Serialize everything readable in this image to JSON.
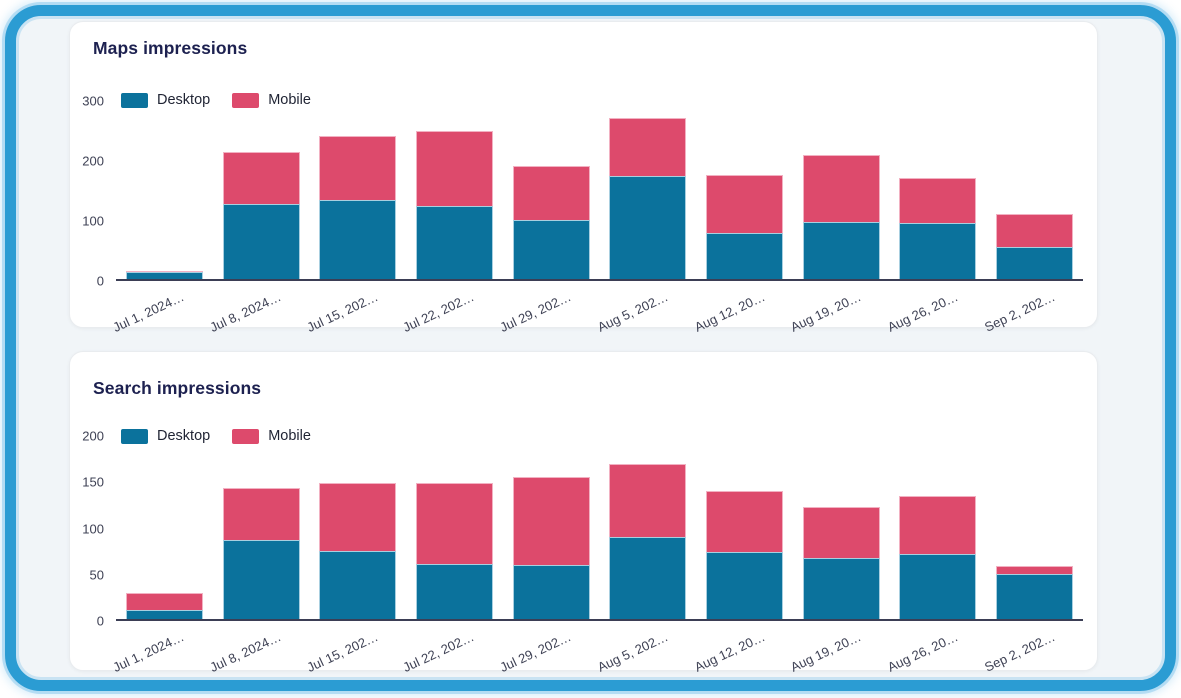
{
  "page": {
    "frame_border_color": "#2b9cd3",
    "canvas_background": "#f1f5f8"
  },
  "colors": {
    "desktop": "#0b729c",
    "mobile": "#dd4a6c",
    "title_text": "#1d2150",
    "tick_text": "#3e4154",
    "axis_line": "#3b3e55",
    "card_background": "#ffffff",
    "card_border": "#e9ecef"
  },
  "chart_data": [
    {
      "type": "bar",
      "stacked": true,
      "title": "Maps impressions",
      "categories": [
        "Jul 1, 2024…",
        "Jul 8, 2024…",
        "Jul 15, 202…",
        "Jul 22, 202…",
        "Jul 29, 202…",
        "Aug 5, 202…",
        "Aug 12, 20…",
        "Aug 19, 20…",
        "Aug 26, 20…",
        "Sep 2, 202…"
      ],
      "series": [
        {
          "name": "Desktop",
          "color": "#0b729c",
          "values": [
            12,
            125,
            132,
            122,
            99,
            172,
            76,
            95,
            93,
            54
          ]
        },
        {
          "name": "Mobile",
          "color": "#dd4a6c",
          "values": [
            2,
            86,
            107,
            125,
            90,
            96,
            97,
            112,
            75,
            54
          ]
        }
      ],
      "ylim": [
        0,
        300
      ],
      "yticks": [
        0,
        100,
        200,
        300
      ],
      "grid": false,
      "legend_position": "top-left",
      "xlabel": "",
      "ylabel": ""
    },
    {
      "type": "bar",
      "stacked": true,
      "title": "Search impressions",
      "categories": [
        "Jul 1, 2024…",
        "Jul 8, 2024…",
        "Jul 15, 202…",
        "Jul 22, 202…",
        "Jul 29, 202…",
        "Aug 5, 202…",
        "Aug 12, 20…",
        "Aug 19, 20…",
        "Aug 26, 20…",
        "Sep 2, 202…"
      ],
      "series": [
        {
          "name": "Desktop",
          "color": "#0b729c",
          "values": [
            10,
            85,
            73,
            59,
            58,
            89,
            72,
            66,
            70,
            49
          ]
        },
        {
          "name": "Mobile",
          "color": "#dd4a6c",
          "values": [
            18,
            57,
            74,
            88,
            95,
            79,
            66,
            55,
            63,
            8
          ]
        }
      ],
      "ylim": [
        0,
        200
      ],
      "yticks": [
        0,
        50,
        100,
        150,
        200
      ],
      "grid": false,
      "legend_position": "top-left",
      "xlabel": "",
      "ylabel": ""
    }
  ]
}
